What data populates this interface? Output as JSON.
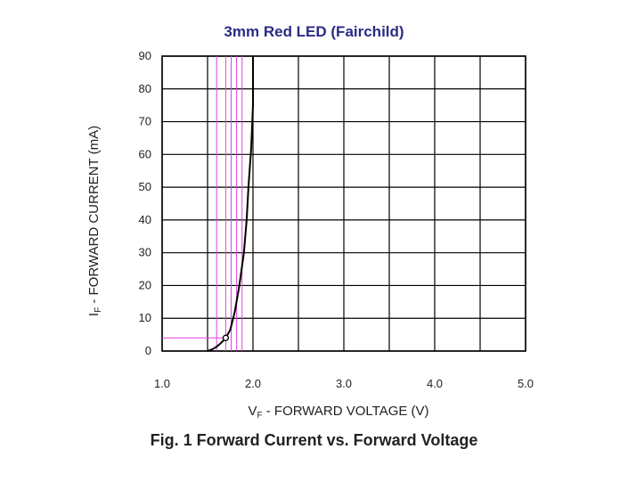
{
  "header": {
    "title": "3mm Red LED (Fairchild)"
  },
  "colors": {
    "title": "#2b2b86",
    "curve": "#000000",
    "grid": "#000000",
    "markers": "#e040e0",
    "text": "#222222"
  },
  "chart_data": {
    "type": "line",
    "title": "",
    "caption": "Fig. 1  Forward Current vs. Forward Voltage",
    "xlabel_main": "V",
    "xlabel_sub": "F",
    "xlabel_rest": " - FORWARD VOLTAGE (V)",
    "ylabel_main": "I",
    "ylabel_sub": "F",
    "ylabel_rest": " - FORWARD CURRENT (mA)",
    "xlim": [
      1.0,
      5.0
    ],
    "ylim": [
      0,
      90
    ],
    "grid": true,
    "xticks": [
      1.0,
      1.5,
      2.0,
      2.5,
      3.0,
      3.5,
      4.0,
      4.5,
      5.0
    ],
    "xtick_labels": [
      {
        "value": 1.0,
        "label": "1.0"
      },
      {
        "value": 2.0,
        "label": "2.0"
      },
      {
        "value": 3.0,
        "label": "3.0"
      },
      {
        "value": 4.0,
        "label": "4.0"
      },
      {
        "value": 5.0,
        "label": "5.0"
      }
    ],
    "yticks": [
      0,
      10,
      20,
      30,
      40,
      50,
      60,
      70,
      80,
      90
    ],
    "ytick_labels": [
      "0",
      "10",
      "20",
      "30",
      "40",
      "50",
      "60",
      "70",
      "80",
      "90"
    ],
    "series": [
      {
        "x": [
          1.5,
          1.55,
          1.6,
          1.65,
          1.7,
          1.75,
          1.8,
          1.85,
          1.9,
          1.93,
          1.95,
          1.98,
          2.0,
          2.0
        ],
        "y": [
          0,
          0.5,
          1.3,
          2.5,
          4.0,
          6.5,
          12.0,
          20.0,
          30.0,
          40.0,
          50.0,
          62.0,
          75.0,
          90.0
        ]
      }
    ],
    "marked_point": {
      "x": 1.7,
      "y": 4.0
    },
    "marker_vlines": [
      1.6,
      1.7,
      1.76,
      1.82,
      1.88
    ]
  }
}
